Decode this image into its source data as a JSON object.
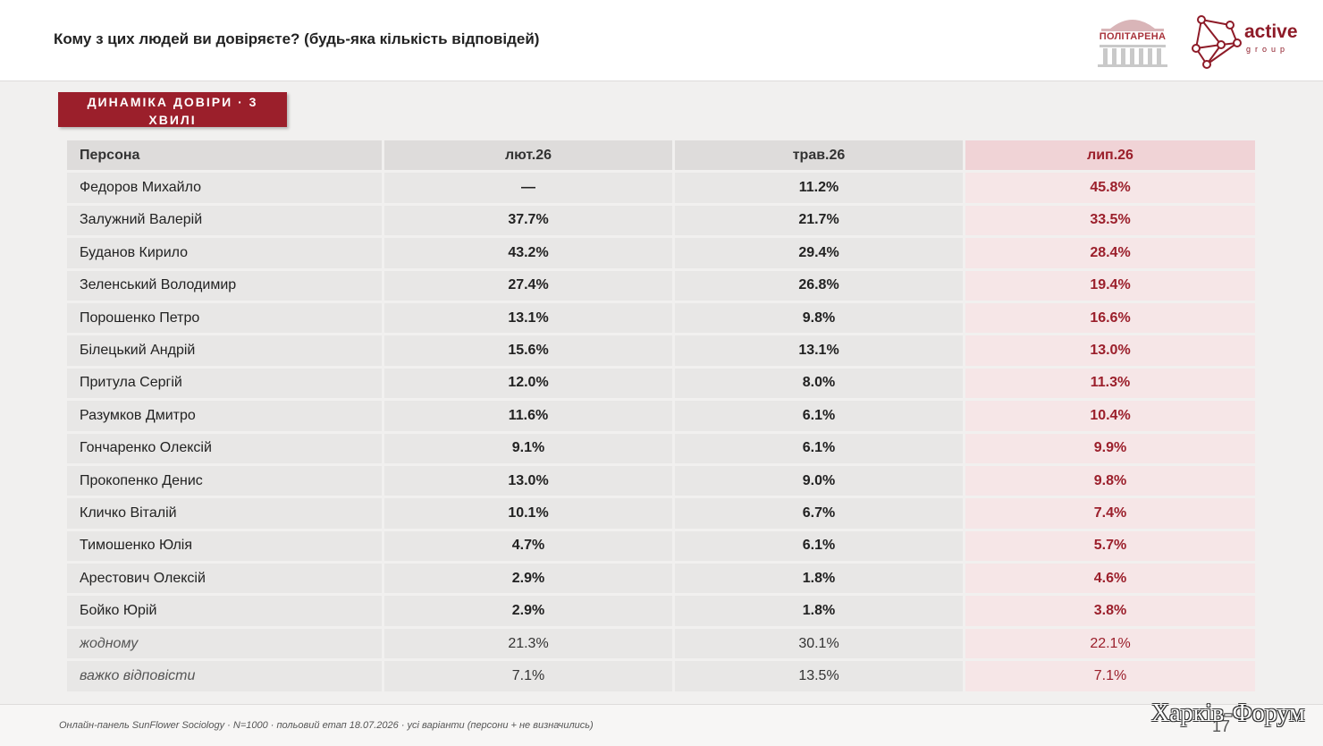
{
  "header": {
    "title": "Кому з цих людей ви довіряєте? (будь-яка кількість відповідей)",
    "logo_parl_text": "ПОЛІТАРЕНА",
    "logo_active_word": "active",
    "logo_active_sub": "group"
  },
  "badge": {
    "line1": "ДИНАМІКА ДОВІРИ · 3",
    "line2": "ХВИЛІ"
  },
  "table": {
    "columns": [
      "Персона",
      "лют.26",
      "трав.26",
      "лип.26"
    ],
    "rows": [
      {
        "name": "Федоров Михайло",
        "feb": "—",
        "may": "11.2%",
        "jul": "45.8%"
      },
      {
        "name": "Залужний Валерій",
        "feb": "37.7%",
        "may": "21.7%",
        "jul": "33.5%"
      },
      {
        "name": "Буданов Кирило",
        "feb": "43.2%",
        "may": "29.4%",
        "jul": "28.4%"
      },
      {
        "name": "Зеленський Володимир",
        "feb": "27.4%",
        "may": "26.8%",
        "jul": "19.4%"
      },
      {
        "name": "Порошенко Петро",
        "feb": "13.1%",
        "may": "9.8%",
        "jul": "16.6%"
      },
      {
        "name": "Білецький Андрій",
        "feb": "15.6%",
        "may": "13.1%",
        "jul": "13.0%"
      },
      {
        "name": "Притула Сергій",
        "feb": "12.0%",
        "may": "8.0%",
        "jul": "11.3%"
      },
      {
        "name": "Разумков Дмитро",
        "feb": "11.6%",
        "may": "6.1%",
        "jul": "10.4%"
      },
      {
        "name": "Гончаренко Олексій",
        "feb": "9.1%",
        "may": "6.1%",
        "jul": "9.9%"
      },
      {
        "name": "Прокопенко Денис",
        "feb": "13.0%",
        "may": "9.0%",
        "jul": "9.8%"
      },
      {
        "name": "Кличко Віталій",
        "feb": "10.1%",
        "may": "6.7%",
        "jul": "7.4%"
      },
      {
        "name": "Тимошенко Юлія",
        "feb": "4.7%",
        "may": "6.1%",
        "jul": "5.7%"
      },
      {
        "name": "Арестович Олексій",
        "feb": "2.9%",
        "may": "1.8%",
        "jul": "4.6%"
      },
      {
        "name": "Бойко Юрій",
        "feb": "2.9%",
        "may": "1.8%",
        "jul": "3.8%"
      },
      {
        "name": "жодному",
        "feb": "21.3%",
        "may": "30.1%",
        "jul": "22.1%"
      },
      {
        "name": "важко відповісти",
        "feb": "7.1%",
        "may": "13.5%",
        "jul": "7.1%"
      }
    ]
  },
  "footer": {
    "note": "Онлайн-панель SunFlower Sociology · N=1000 · польовий етап 18.07.2026 · усі варіанти (персони + не визначились)",
    "page_number": "17",
    "watermark": "Харків-Форум"
  },
  "colors": {
    "accent": "#9b1f2b",
    "highlight_column": "#f6e6e7",
    "cell_bg": "#e8e7e6"
  }
}
